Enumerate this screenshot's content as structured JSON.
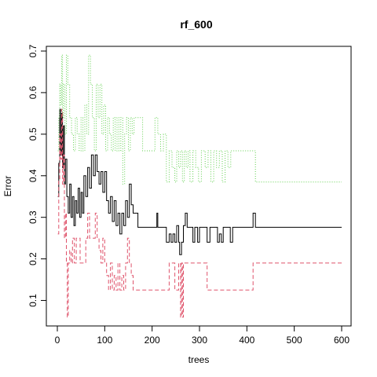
{
  "chart_data": {
    "type": "line",
    "title": "rf_600",
    "xlabel": "trees",
    "ylabel": "Error",
    "xlim": [
      0,
      600
    ],
    "ylim": [
      0.05,
      0.7
    ],
    "grid": false,
    "x_ticks": [
      0,
      100,
      200,
      300,
      400,
      500,
      600
    ],
    "x_tick_labels": [
      "0",
      "100",
      "200",
      "300",
      "400",
      "500",
      "600"
    ],
    "y_ticks": [
      0.1,
      0.2,
      0.3,
      0.4,
      0.5,
      0.6,
      0.7
    ],
    "y_tick_labels": [
      "0.1",
      "0.2",
      "0.3",
      "0.4",
      "0.5",
      "0.6",
      "0.7"
    ],
    "series": [
      {
        "key": "oob",
        "color": "#000000",
        "dash": "",
        "points": [
          [
            1,
            0.35
          ],
          [
            3,
            0.43
          ],
          [
            5,
            0.56
          ],
          [
            7,
            0.45
          ],
          [
            9,
            0.55
          ],
          [
            11,
            0.42
          ],
          [
            13,
            0.52
          ],
          [
            15,
            0.38
          ],
          [
            17,
            0.44
          ],
          [
            20,
            0.35
          ],
          [
            23,
            0.31
          ],
          [
            26,
            0.38
          ],
          [
            29,
            0.3
          ],
          [
            32,
            0.35
          ],
          [
            35,
            0.28
          ],
          [
            38,
            0.34
          ],
          [
            41,
            0.31
          ],
          [
            44,
            0.37
          ],
          [
            47,
            0.3
          ],
          [
            50,
            0.36
          ],
          [
            53,
            0.31
          ],
          [
            56,
            0.4
          ],
          [
            60,
            0.35
          ],
          [
            64,
            0.42
          ],
          [
            68,
            0.37
          ],
          [
            72,
            0.45
          ],
          [
            76,
            0.4
          ],
          [
            80,
            0.45
          ],
          [
            84,
            0.41
          ],
          [
            88,
            0.38
          ],
          [
            92,
            0.41
          ],
          [
            96,
            0.36
          ],
          [
            100,
            0.41
          ],
          [
            104,
            0.34
          ],
          [
            108,
            0.31
          ],
          [
            112,
            0.35
          ],
          [
            116,
            0.29
          ],
          [
            120,
            0.34
          ],
          [
            124,
            0.28
          ],
          [
            128,
            0.31
          ],
          [
            132,
            0.26
          ],
          [
            136,
            0.31
          ],
          [
            140,
            0.28
          ],
          [
            144,
            0.34
          ],
          [
            148,
            0.3
          ],
          [
            152,
            0.38
          ],
          [
            156,
            0.33
          ],
          [
            160,
            0.31
          ],
          [
            165,
            0.31
          ],
          [
            170,
            0.276
          ],
          [
            200,
            0.276
          ],
          [
            210,
            0.31
          ],
          [
            212,
            0.276
          ],
          [
            228,
            0.276
          ],
          [
            230,
            0.24
          ],
          [
            236,
            0.26
          ],
          [
            240,
            0.24
          ],
          [
            244,
            0.26
          ],
          [
            248,
            0.24
          ],
          [
            252,
            0.28
          ],
          [
            256,
            0.24
          ],
          [
            258,
            0.21
          ],
          [
            262,
            0.24
          ],
          [
            266,
            0.28
          ],
          [
            270,
            0.31
          ],
          [
            274,
            0.276
          ],
          [
            282,
            0.276
          ],
          [
            286,
            0.24
          ],
          [
            290,
            0.276
          ],
          [
            296,
            0.24
          ],
          [
            300,
            0.276
          ],
          [
            312,
            0.276
          ],
          [
            316,
            0.24
          ],
          [
            322,
            0.276
          ],
          [
            334,
            0.276
          ],
          [
            338,
            0.24
          ],
          [
            342,
            0.26
          ],
          [
            346,
            0.24
          ],
          [
            350,
            0.276
          ],
          [
            360,
            0.276
          ],
          [
            365,
            0.24
          ],
          [
            370,
            0.276
          ],
          [
            410,
            0.276
          ],
          [
            413,
            0.31
          ],
          [
            418,
            0.276
          ],
          [
            600,
            0.276
          ]
        ]
      },
      {
        "key": "class0",
        "color": "#df536b",
        "dash": "5,3",
        "points": [
          [
            1,
            0.26
          ],
          [
            3,
            0.39
          ],
          [
            5,
            0.5
          ],
          [
            7,
            0.44
          ],
          [
            9,
            0.56
          ],
          [
            11,
            0.38
          ],
          [
            13,
            0.45
          ],
          [
            15,
            0.25
          ],
          [
            17,
            0.31
          ],
          [
            19,
            0.19
          ],
          [
            21,
            0.06
          ],
          [
            23,
            0.19
          ],
          [
            26,
            0.22
          ],
          [
            29,
            0.19
          ],
          [
            32,
            0.25
          ],
          [
            36,
            0.19
          ],
          [
            40,
            0.25
          ],
          [
            48,
            0.19
          ],
          [
            56,
            0.19
          ],
          [
            60,
            0.25
          ],
          [
            64,
            0.31
          ],
          [
            68,
            0.25
          ],
          [
            76,
            0.25
          ],
          [
            80,
            0.31
          ],
          [
            84,
            0.25
          ],
          [
            88,
            0.22
          ],
          [
            92,
            0.19
          ],
          [
            96,
            0.25
          ],
          [
            100,
            0.19
          ],
          [
            104,
            0.16
          ],
          [
            108,
            0.125
          ],
          [
            112,
            0.19
          ],
          [
            116,
            0.125
          ],
          [
            120,
            0.16
          ],
          [
            124,
            0.125
          ],
          [
            128,
            0.19
          ],
          [
            132,
            0.125
          ],
          [
            136,
            0.16
          ],
          [
            140,
            0.125
          ],
          [
            144,
            0.19
          ],
          [
            148,
            0.25
          ],
          [
            152,
            0.19
          ],
          [
            156,
            0.16
          ],
          [
            160,
            0.125
          ],
          [
            230,
            0.125
          ],
          [
            236,
            0.19
          ],
          [
            244,
            0.19
          ],
          [
            248,
            0.125
          ],
          [
            256,
            0.19
          ],
          [
            260,
            0.06
          ],
          [
            262,
            0.19
          ],
          [
            264,
            0.06
          ],
          [
            266,
            0.19
          ],
          [
            312,
            0.19
          ],
          [
            316,
            0.125
          ],
          [
            410,
            0.125
          ],
          [
            413,
            0.19
          ],
          [
            600,
            0.19
          ]
        ]
      },
      {
        "key": "class1",
        "color": "#61d04f",
        "dash": "1,2",
        "points": [
          [
            1,
            0.46
          ],
          [
            3,
            0.54
          ],
          [
            5,
            0.62
          ],
          [
            7,
            0.57
          ],
          [
            9,
            0.69
          ],
          [
            11,
            0.54
          ],
          [
            13,
            0.62
          ],
          [
            16,
            0.5
          ],
          [
            19,
            0.69
          ],
          [
            22,
            0.62
          ],
          [
            26,
            0.54
          ],
          [
            30,
            0.5
          ],
          [
            34,
            0.46
          ],
          [
            38,
            0.54
          ],
          [
            42,
            0.5
          ],
          [
            46,
            0.46
          ],
          [
            50,
            0.54
          ],
          [
            54,
            0.46
          ],
          [
            58,
            0.57
          ],
          [
            62,
            0.5
          ],
          [
            66,
            0.69
          ],
          [
            70,
            0.62
          ],
          [
            74,
            0.54
          ],
          [
            78,
            0.46
          ],
          [
            82,
            0.62
          ],
          [
            86,
            0.54
          ],
          [
            90,
            0.62
          ],
          [
            94,
            0.5
          ],
          [
            98,
            0.57
          ],
          [
            102,
            0.46
          ],
          [
            106,
            0.54
          ],
          [
            110,
            0.5
          ],
          [
            114,
            0.46
          ],
          [
            118,
            0.54
          ],
          [
            122,
            0.46
          ],
          [
            126,
            0.54
          ],
          [
            130,
            0.46
          ],
          [
            134,
            0.54
          ],
          [
            138,
            0.38
          ],
          [
            142,
            0.5
          ],
          [
            146,
            0.54
          ],
          [
            150,
            0.46
          ],
          [
            154,
            0.54
          ],
          [
            158,
            0.5
          ],
          [
            162,
            0.54
          ],
          [
            170,
            0.54
          ],
          [
            180,
            0.46
          ],
          [
            200,
            0.46
          ],
          [
            206,
            0.54
          ],
          [
            212,
            0.5
          ],
          [
            218,
            0.46
          ],
          [
            224,
            0.5
          ],
          [
            230,
            0.385
          ],
          [
            236,
            0.46
          ],
          [
            242,
            0.42
          ],
          [
            248,
            0.385
          ],
          [
            252,
            0.46
          ],
          [
            256,
            0.42
          ],
          [
            260,
            0.46
          ],
          [
            264,
            0.385
          ],
          [
            268,
            0.46
          ],
          [
            272,
            0.42
          ],
          [
            276,
            0.46
          ],
          [
            280,
            0.385
          ],
          [
            286,
            0.46
          ],
          [
            292,
            0.42
          ],
          [
            298,
            0.385
          ],
          [
            304,
            0.46
          ],
          [
            312,
            0.42
          ],
          [
            318,
            0.46
          ],
          [
            324,
            0.385
          ],
          [
            330,
            0.46
          ],
          [
            336,
            0.42
          ],
          [
            342,
            0.46
          ],
          [
            348,
            0.385
          ],
          [
            354,
            0.46
          ],
          [
            360,
            0.42
          ],
          [
            366,
            0.46
          ],
          [
            410,
            0.46
          ],
          [
            418,
            0.385
          ],
          [
            600,
            0.385
          ]
        ]
      }
    ]
  }
}
